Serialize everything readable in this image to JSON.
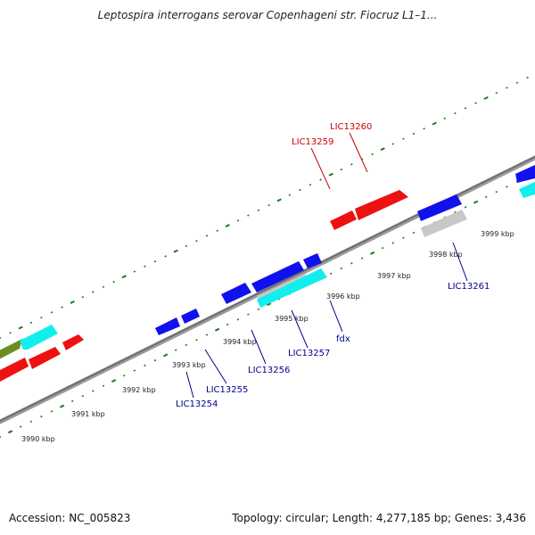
{
  "title": "Leptospira interrogans serovar Copenhageni str. Fiocruz L1–1...",
  "accession": "Accession: NC_005823",
  "topology": "Topology: circular; Length: 4,277,185 bp; Genes: 3,436",
  "colors": {
    "backbone": "#777777",
    "ticks": "#1a7a1a",
    "forward_label": "#cc0000",
    "reverse_label": "#00008b",
    "gene_red": "#ee1111",
    "gene_blue": "#1111ee",
    "gene_cyan": "#11eeee",
    "gene_gray": "#c8c8c8",
    "gene_olive": "#6b8e23"
  },
  "scale_labels": [
    "3990 kbp",
    "3991 kbp",
    "3992 kbp",
    "3993 kbp",
    "3994 kbp",
    "3995 kbp",
    "3996 kbp",
    "3997 kbp",
    "3998 kbp",
    "3999 kbp"
  ],
  "gene_labels_forward": [
    "LIC13259",
    "LIC13260"
  ],
  "gene_labels_reverse": [
    "LIC13254",
    "LIC13255",
    "LIC13256",
    "LIC13257",
    "fdx",
    "LIC13261"
  ]
}
